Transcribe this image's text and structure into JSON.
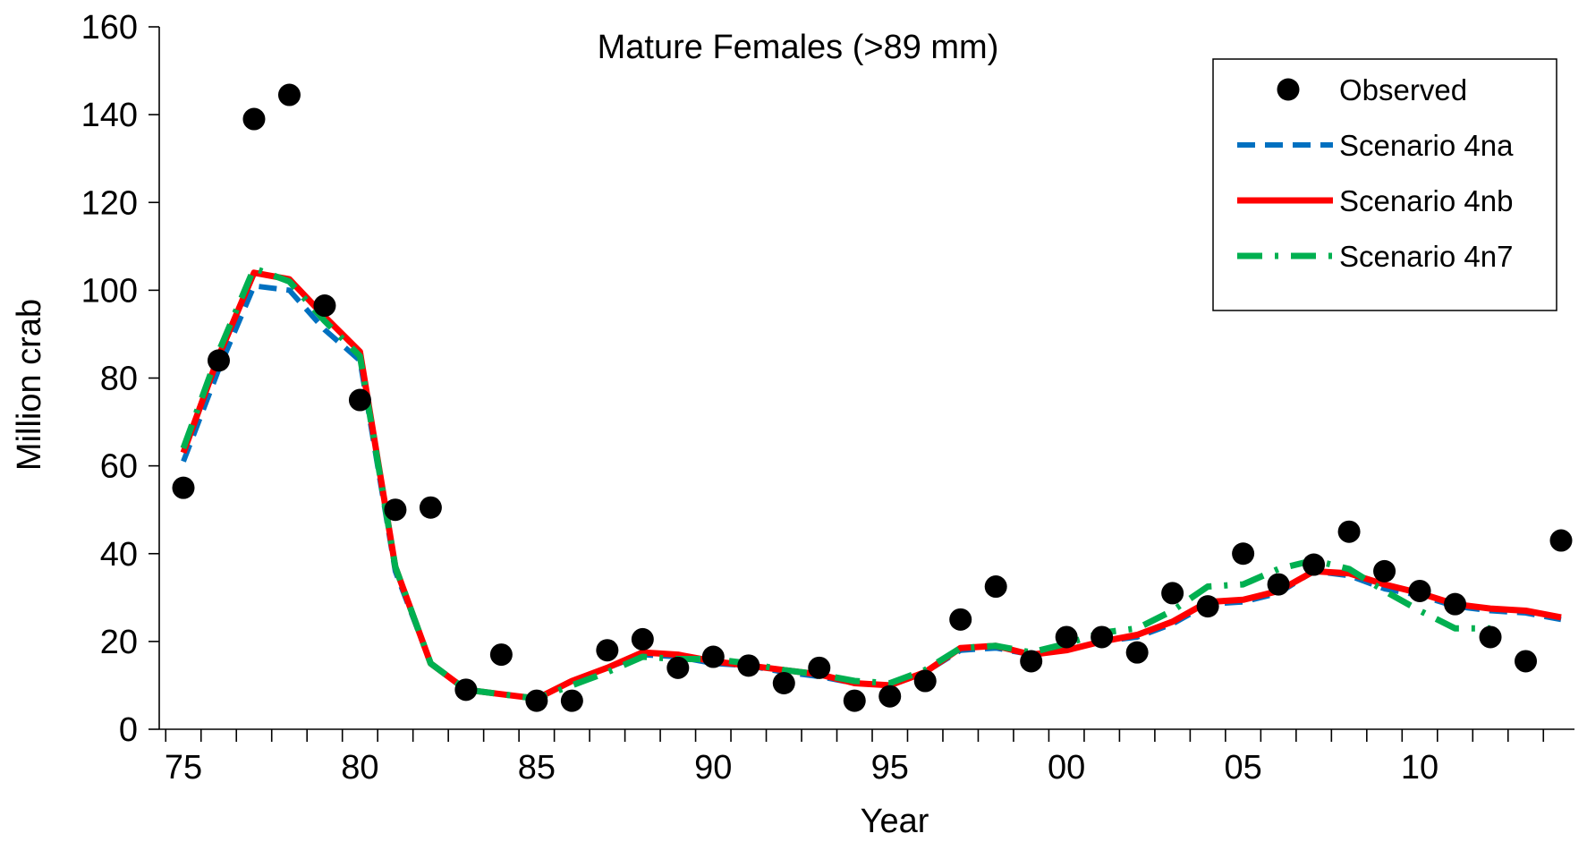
{
  "chart_data": {
    "type": "line",
    "title": "Mature Females (>89 mm)",
    "xlabel": "Year",
    "ylabel": "Million crab",
    "ylim": [
      0,
      160
    ],
    "yticks": [
      0,
      20,
      40,
      60,
      80,
      100,
      120,
      140,
      160
    ],
    "xlim": [
      1975,
      2014
    ],
    "xtick_labels": [
      {
        "year": 1975,
        "label": "75"
      },
      {
        "year": 1980,
        "label": "80"
      },
      {
        "year": 1985,
        "label": "85"
      },
      {
        "year": 1990,
        "label": "90"
      },
      {
        "year": 1995,
        "label": "95"
      },
      {
        "year": 2000,
        "label": "00"
      },
      {
        "year": 2005,
        "label": "05"
      },
      {
        "year": 2010,
        "label": "10"
      }
    ],
    "grid": false,
    "legend_position": "top-right",
    "observed": {
      "name": "Observed",
      "color": "#000000",
      "x": [
        1975,
        1976,
        1977,
        1978,
        1979,
        1980,
        1981,
        1982,
        1983,
        1984,
        1985,
        1986,
        1987,
        1988,
        1989,
        1990,
        1991,
        1992,
        1993,
        1994,
        1995,
        1996,
        1997,
        1998,
        1999,
        2000,
        2001,
        2002,
        2003,
        2004,
        2005,
        2006,
        2007,
        2008,
        2009,
        2010,
        2011,
        2012,
        2013,
        2014
      ],
      "y": [
        55,
        84,
        139,
        144.5,
        96.5,
        75,
        50,
        50.5,
        9,
        17,
        6.5,
        6.5,
        18,
        20.5,
        14,
        16.5,
        14.5,
        10.5,
        14,
        6.5,
        7.5,
        11,
        25,
        32.5,
        15.5,
        21,
        21,
        17.5,
        31,
        28,
        40,
        33,
        37.5,
        45,
        36,
        31.5,
        28.5,
        21,
        15.5,
        43
      ]
    },
    "series": [
      {
        "name": "Scenario 4na",
        "color": "#0070C0",
        "style": "dashed",
        "x": [
          1975,
          1976,
          1977,
          1978,
          1979,
          1980,
          1981,
          1982,
          1983,
          1984,
          1985,
          1986,
          1987,
          1988,
          1989,
          1990,
          1991,
          1992,
          1993,
          1994,
          1995,
          1996,
          1997,
          1998,
          1999,
          2000,
          2001,
          2002,
          2003,
          2004,
          2005,
          2006,
          2007,
          2008,
          2009,
          2010,
          2011,
          2012,
          2013,
          2014
        ],
        "y": [
          61,
          82,
          101,
          100,
          91,
          84,
          36,
          15,
          9,
          8,
          7,
          11,
          14,
          17,
          16.5,
          15,
          14.5,
          13,
          12,
          10.5,
          10,
          13,
          18,
          18.5,
          17,
          18,
          20,
          21,
          24,
          28.5,
          29,
          31,
          36,
          35,
          32,
          30.5,
          28,
          27,
          26.5,
          25
        ]
      },
      {
        "name": "Scenario 4nb",
        "color": "#FF0000",
        "style": "solid",
        "x": [
          1975,
          1976,
          1977,
          1978,
          1979,
          1980,
          1981,
          1982,
          1983,
          1984,
          1985,
          1986,
          1987,
          1988,
          1989,
          1990,
          1991,
          1992,
          1993,
          1994,
          1995,
          1996,
          1997,
          1998,
          1999,
          2000,
          2001,
          2002,
          2003,
          2004,
          2005,
          2006,
          2007,
          2008,
          2009,
          2010,
          2011,
          2012,
          2013,
          2014
        ],
        "y": [
          63,
          85,
          104,
          102.5,
          94,
          86,
          37,
          15,
          9,
          8,
          7,
          11,
          14,
          17.5,
          17,
          15.5,
          14.5,
          13.5,
          12.5,
          10.5,
          10,
          13,
          18.5,
          19,
          17,
          18,
          20,
          21.5,
          24.5,
          29,
          29.5,
          31.5,
          36,
          35.5,
          33,
          31,
          28.5,
          27.5,
          27,
          25.5
        ]
      },
      {
        "name": "Scenario 4n7",
        "color": "#00B050",
        "style": "dash-dot",
        "x": [
          1975,
          1976,
          1977,
          1978,
          1979,
          1980,
          1981,
          1982,
          1983,
          1984,
          1985,
          1986,
          1987,
          1988,
          1989,
          1990,
          1991,
          1992,
          1993,
          1994,
          1995,
          1996,
          1997,
          1998,
          1999,
          2000,
          2001,
          2002,
          2003,
          2004,
          2005,
          2006,
          2007,
          2008,
          2009,
          2010,
          2011,
          2012
        ],
        "y": [
          64,
          86,
          105,
          102,
          93,
          85,
          37,
          15,
          9,
          8,
          7,
          10,
          13,
          16.5,
          16,
          16,
          15,
          13.5,
          12.5,
          11,
          10.5,
          13.5,
          18.5,
          19,
          17.5,
          19.5,
          22,
          23,
          27,
          32.5,
          33,
          36.5,
          38.5,
          36.5,
          31.5,
          27,
          23,
          23
        ]
      }
    ]
  }
}
